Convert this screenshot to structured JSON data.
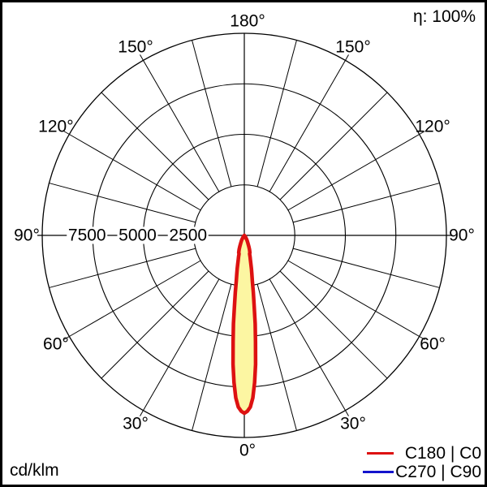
{
  "header": {
    "efficiency": "η: 100%"
  },
  "footer": {
    "unit": "cd/klm"
  },
  "legend": {
    "items": [
      {
        "label": "C180 | C0",
        "color": "#dd1111"
      },
      {
        "label": "C270 | C90",
        "color": "#1414cc"
      }
    ]
  },
  "chart_data": {
    "type": "polar",
    "subtype": "luminous-intensity-distribution",
    "unit": "cd/klm",
    "efficiency_annotation": "η: 100%",
    "angle_labels_deg": [
      0,
      30,
      60,
      90,
      120,
      150,
      180
    ],
    "angle_grid_step_deg": 15,
    "radial_ticks": [
      2500,
      5000,
      7500
    ],
    "radial_max": 10000,
    "grid_color": "#000000",
    "legend_position": "bottom-right",
    "series": [
      {
        "name": "C180 | C0",
        "color": "#dd1111",
        "fill": "#fcf6a2",
        "symmetric": true,
        "points": [
          [
            0,
            8800
          ],
          [
            1,
            8700
          ],
          [
            2,
            8500
          ],
          [
            3,
            8050
          ],
          [
            4,
            7300
          ],
          [
            5,
            6400
          ],
          [
            6,
            5300
          ],
          [
            7,
            4400
          ],
          [
            8,
            3500
          ],
          [
            9,
            2850
          ],
          [
            10,
            2300
          ],
          [
            11,
            1950
          ],
          [
            12,
            1700
          ],
          [
            13,
            1450
          ],
          [
            14,
            1250
          ],
          [
            15,
            1100
          ],
          [
            16,
            950
          ],
          [
            18,
            900
          ],
          [
            20,
            750
          ],
          [
            22,
            600
          ],
          [
            25,
            420
          ],
          [
            28,
            300
          ],
          [
            30,
            230
          ],
          [
            33,
            150
          ],
          [
            36,
            90
          ],
          [
            40,
            40
          ],
          [
            45,
            0
          ],
          [
            60,
            0
          ],
          [
            75,
            0
          ],
          [
            90,
            0
          ],
          [
            105,
            0
          ],
          [
            120,
            0
          ],
          [
            135,
            0
          ],
          [
            150,
            0
          ],
          [
            165,
            0
          ],
          [
            180,
            0
          ]
        ]
      },
      {
        "name": "C270 | C90",
        "color": "#1414cc",
        "fill": "none",
        "symmetric": true,
        "points": [
          [
            0,
            8800
          ],
          [
            1,
            8700
          ],
          [
            2,
            8500
          ],
          [
            3,
            8050
          ],
          [
            4,
            7300
          ],
          [
            5,
            6400
          ],
          [
            6,
            5300
          ],
          [
            7,
            4400
          ],
          [
            8,
            3500
          ],
          [
            9,
            2850
          ],
          [
            10,
            2300
          ],
          [
            11,
            1950
          ],
          [
            12,
            1700
          ],
          [
            13,
            1450
          ],
          [
            14,
            1250
          ],
          [
            15,
            1100
          ],
          [
            16,
            950
          ],
          [
            18,
            900
          ],
          [
            20,
            750
          ],
          [
            22,
            600
          ],
          [
            25,
            420
          ],
          [
            28,
            300
          ],
          [
            30,
            230
          ],
          [
            33,
            150
          ],
          [
            36,
            90
          ],
          [
            40,
            40
          ],
          [
            45,
            0
          ],
          [
            60,
            0
          ],
          [
            75,
            0
          ],
          [
            90,
            0
          ],
          [
            105,
            0
          ],
          [
            120,
            0
          ],
          [
            135,
            0
          ],
          [
            150,
            0
          ],
          [
            165,
            0
          ],
          [
            180,
            0
          ]
        ]
      }
    ]
  }
}
